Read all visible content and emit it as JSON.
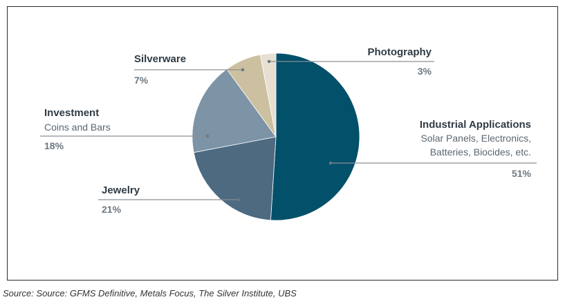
{
  "chart_data": {
    "type": "pie",
    "slices": [
      {
        "label": "Industrial Applications",
        "sublabel": [
          "Solar Panels, Electronics,",
          "Batteries, Biocides, etc."
        ],
        "value": 51,
        "value_label": "51%",
        "color": "#02506a"
      },
      {
        "label": "Jewelry",
        "sublabel": [],
        "value": 21,
        "value_label": "21%",
        "color": "#4d6a80"
      },
      {
        "label": "Investment",
        "sublabel": [
          "Coins and Bars"
        ],
        "value": 18,
        "value_label": "18%",
        "color": "#7d93a6"
      },
      {
        "label": "Silverware",
        "sublabel": [],
        "value": 7,
        "value_label": "7%",
        "color": "#ccc0a1"
      },
      {
        "label": "Photography",
        "sublabel": [],
        "value": 3,
        "value_label": "3%",
        "color": "#e7e0d2"
      }
    ],
    "start_angle_deg": 0,
    "direction": "clockwise"
  },
  "source": "Source: Source: GFMS Definitive, Metals Focus, The Silver Institute, UBS"
}
